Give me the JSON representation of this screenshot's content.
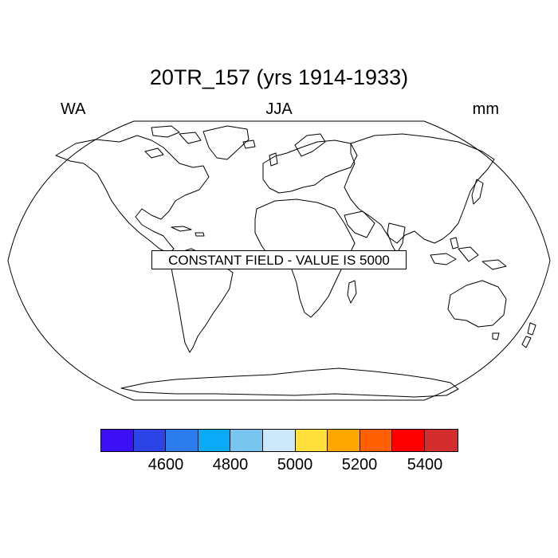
{
  "title": "20TR_157 (yrs 1914-1933)",
  "left_label": "WA",
  "center_label": "JJA",
  "right_label": "mm",
  "notice": "CONSTANT FIELD - VALUE IS 5000",
  "colorbar": {
    "colors": [
      "#3c10f5",
      "#2c44e6",
      "#2c7ced",
      "#0baaf7",
      "#78c6ef",
      "#cde8f8",
      "#ffe03a",
      "#ffa600",
      "#ff5f00",
      "#ff0000",
      "#d32d2d"
    ],
    "ticks": [
      "4600",
      "4800",
      "5000",
      "5200",
      "5400"
    ]
  }
}
